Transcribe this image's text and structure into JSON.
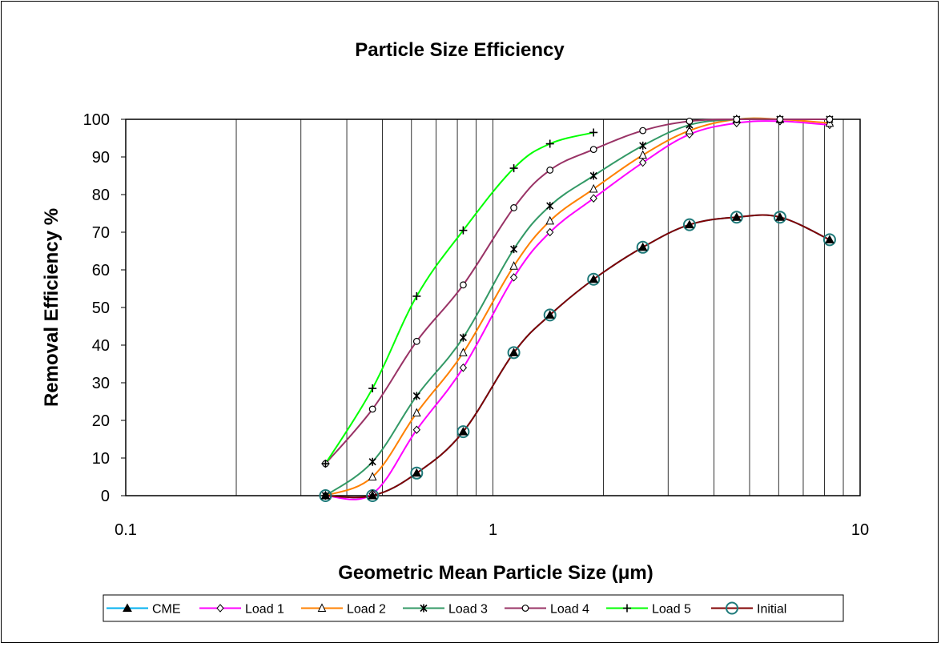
{
  "chart_data": {
    "type": "line",
    "title": "Particle Size Efficiency",
    "xlabel": "Geometric Mean Particle Size (μm)",
    "ylabel": "Removal Efficiency %",
    "xscale": "log",
    "xlim": [
      0.1,
      10
    ],
    "ylim": [
      0,
      100
    ],
    "x_ticks": [
      0.1,
      1,
      10
    ],
    "x_tick_labels": [
      "0.1",
      "1",
      "10"
    ],
    "y_ticks": [
      0,
      10,
      20,
      30,
      40,
      50,
      60,
      70,
      80,
      90,
      100
    ],
    "grid": "vertical log minor gridlines",
    "legend_position": "bottom",
    "x": [
      0.35,
      0.47,
      0.62,
      0.83,
      1.14,
      1.43,
      1.88,
      2.56,
      3.43,
      4.61,
      6.05,
      8.26
    ],
    "series": [
      {
        "name": "CME",
        "color": "#00b0f0",
        "marker": "filled-triangle",
        "values": [
          0,
          0,
          6,
          17,
          38,
          48,
          57.5,
          66,
          72,
          74,
          74,
          68
        ]
      },
      {
        "name": "Load 1",
        "color": "#ff00ff",
        "marker": "diamond",
        "values": [
          0,
          0.5,
          17.5,
          34,
          58,
          70,
          79,
          88.5,
          96,
          99,
          99.5,
          98.5
        ]
      },
      {
        "name": "Load 2",
        "color": "#ff8000",
        "marker": "open-triangle",
        "values": [
          0,
          5,
          22,
          38,
          61,
          73,
          81.5,
          90.5,
          97,
          100,
          100,
          99
        ]
      },
      {
        "name": "Load 3",
        "color": "#339966",
        "marker": "asterisk",
        "values": [
          0,
          9,
          26.5,
          42,
          65.5,
          77,
          85,
          93,
          98.5,
          100,
          100,
          100
        ]
      },
      {
        "name": "Load 4",
        "color": "#993366",
        "marker": "circle-small",
        "values": [
          8.5,
          23,
          41,
          56,
          76.5,
          86.5,
          92,
          97,
          99.5,
          100,
          100,
          100
        ]
      },
      {
        "name": "Load 5",
        "color": "#00ff00",
        "marker": "plus",
        "values": [
          8.5,
          28.5,
          53,
          70.5,
          87,
          93.5,
          96.5,
          null,
          null,
          null,
          null,
          null
        ]
      },
      {
        "name": "Initial",
        "color": "#800000",
        "marker": "open-circle-teal",
        "values": [
          0,
          0,
          6,
          17,
          38,
          48,
          57.5,
          66,
          72,
          74,
          74,
          68
        ]
      }
    ]
  }
}
